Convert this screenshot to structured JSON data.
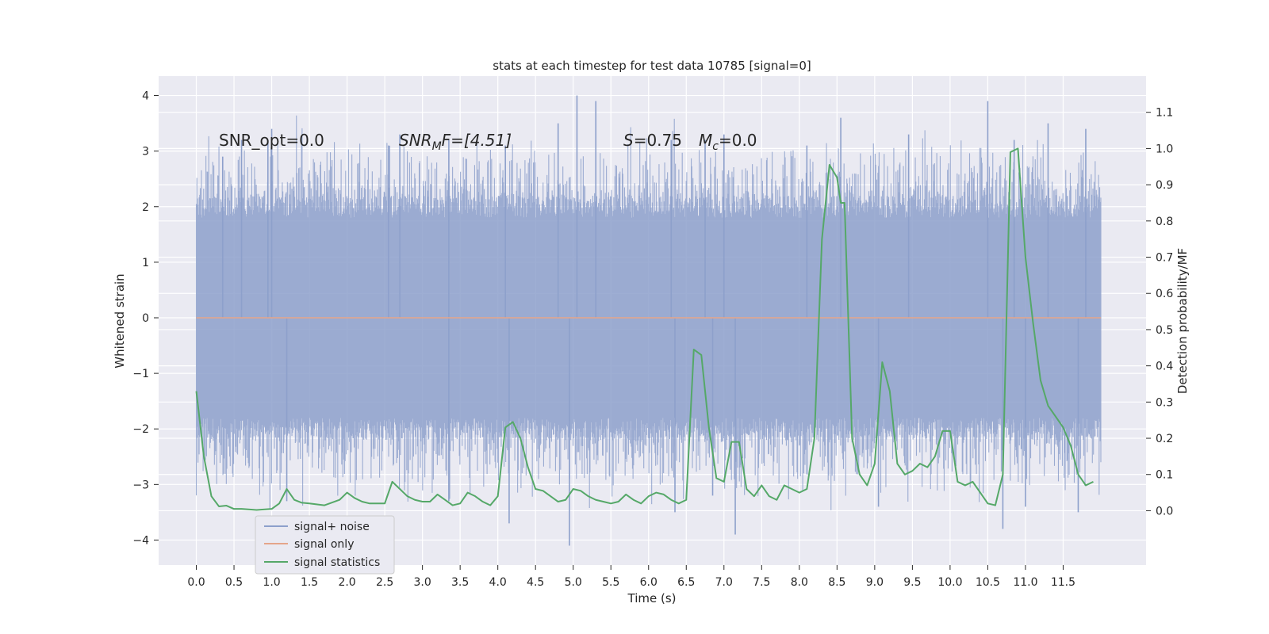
{
  "chart_data": {
    "type": "line",
    "title": "stats at each timestep for test data 10785 [signal=0]",
    "xlabel": "Time (s)",
    "ylabel": "Whitened strain",
    "y2label": "Detection probability/MF",
    "xlim": [
      -0.5,
      12.6
    ],
    "ylim": [
      -4.45,
      4.35
    ],
    "y2lim": [
      -0.15,
      1.2
    ],
    "xticks": [
      0.0,
      0.5,
      1.0,
      1.5,
      2.0,
      2.5,
      3.0,
      3.5,
      4.0,
      4.5,
      5.0,
      5.5,
      6.0,
      6.5,
      7.0,
      7.5,
      8.0,
      8.5,
      9.0,
      9.5,
      10.0,
      10.5,
      11.0,
      11.5
    ],
    "xtick_labels": [
      "0.0",
      "0.5",
      "1.0",
      "1.5",
      "2.0",
      "2.5",
      "3.0",
      "3.5",
      "4.0",
      "4.5",
      "5.0",
      "5.5",
      "6.0",
      "6.5",
      "7.0",
      "7.5",
      "8.0",
      "8.5",
      "9.0",
      "9.5",
      "10.0",
      "10.5",
      "11.0",
      "11.5"
    ],
    "yticks": [
      4,
      3,
      2,
      1,
      0,
      -1,
      -2,
      -3,
      -4
    ],
    "ytick_labels": [
      "4",
      "3",
      "2",
      "1",
      "0",
      "−1",
      "−2",
      "−3",
      "−4"
    ],
    "y2ticks": [
      1.1,
      1.0,
      0.9,
      0.8,
      0.7,
      0.6,
      0.5,
      0.4,
      0.3,
      0.2,
      0.1,
      0.0
    ],
    "y2tick_labels": [
      "1.1",
      "1.0",
      "0.9",
      "0.8",
      "0.7",
      "0.6",
      "0.5",
      "0.4",
      "0.3",
      "0.2",
      "0.1",
      "0.0"
    ],
    "grid": true,
    "legend_position": "lower-left",
    "annotations": {
      "snr_opt": "SNR_opt=0.0",
      "snr_mf_main": "SNR",
      "snr_mf_sub": "M",
      "snr_mf_rest": "F=[4.51]",
      "s_main": "S",
      "s_rest": "=0.75",
      "mc_main": "M",
      "mc_sub": "c",
      "mc_rest": "=0.0"
    },
    "series": [
      {
        "name": "signal+ noise",
        "color": "#8da0cb",
        "axis": "left",
        "style": "noise",
        "t_range": [
          0.0,
          12.0
        ],
        "baseline_band": [
          -1.8,
          1.8
        ],
        "peaks": [
          {
            "t": 0.35,
            "v": 2.9
          },
          {
            "t": 0.6,
            "v": 3.2
          },
          {
            "t": 0.95,
            "v": 3.2
          },
          {
            "t": 1.0,
            "v": 3.4
          },
          {
            "t": 2.55,
            "v": 3.1
          },
          {
            "t": 2.7,
            "v": 3.3
          },
          {
            "t": 3.35,
            "v": 3.2
          },
          {
            "t": 4.1,
            "v": 3.1
          },
          {
            "t": 4.8,
            "v": 3.5
          },
          {
            "t": 5.05,
            "v": 4.0
          },
          {
            "t": 5.3,
            "v": 3.9
          },
          {
            "t": 6.3,
            "v": 3.2
          },
          {
            "t": 6.75,
            "v": 3.2
          },
          {
            "t": 7.0,
            "v": 3.3
          },
          {
            "t": 8.1,
            "v": 3.1
          },
          {
            "t": 8.55,
            "v": 3.6
          },
          {
            "t": 9.45,
            "v": 3.3
          },
          {
            "t": 10.5,
            "v": 3.9
          },
          {
            "t": 10.85,
            "v": 3.2
          },
          {
            "t": 11.3,
            "v": 3.5
          },
          {
            "t": 11.8,
            "v": 3.4
          }
        ],
        "troughs": [
          {
            "t": 1.2,
            "v": -3.3
          },
          {
            "t": 3.35,
            "v": -3.3
          },
          {
            "t": 4.15,
            "v": -3.7
          },
          {
            "t": 4.95,
            "v": -4.1
          },
          {
            "t": 6.35,
            "v": -3.5
          },
          {
            "t": 6.85,
            "v": -3.2
          },
          {
            "t": 7.15,
            "v": -3.9
          },
          {
            "t": 9.05,
            "v": -3.4
          },
          {
            "t": 10.7,
            "v": -3.8
          },
          {
            "t": 11.0,
            "v": -3.4
          },
          {
            "t": 11.7,
            "v": -3.5
          }
        ]
      },
      {
        "name": "signal only",
        "color": "#e5a58a",
        "axis": "left",
        "x": [
          0.0,
          12.0
        ],
        "y": [
          0.0,
          0.0
        ]
      },
      {
        "name": "signal statistics",
        "color": "#55a868",
        "axis": "right",
        "x": [
          0.0,
          0.1,
          0.2,
          0.3,
          0.4,
          0.5,
          0.6,
          0.8,
          1.0,
          1.1,
          1.2,
          1.3,
          1.4,
          1.5,
          1.7,
          1.9,
          2.0,
          2.1,
          2.2,
          2.3,
          2.5,
          2.6,
          2.7,
          2.8,
          2.9,
          3.0,
          3.1,
          3.2,
          3.3,
          3.4,
          3.5,
          3.6,
          3.7,
          3.8,
          3.9,
          4.0,
          4.1,
          4.2,
          4.3,
          4.4,
          4.5,
          4.6,
          4.7,
          4.8,
          4.9,
          5.0,
          5.1,
          5.2,
          5.3,
          5.4,
          5.5,
          5.6,
          5.7,
          5.8,
          5.9,
          6.0,
          6.1,
          6.2,
          6.3,
          6.4,
          6.5,
          6.6,
          6.7,
          6.8,
          6.9,
          7.0,
          7.1,
          7.2,
          7.3,
          7.4,
          7.5,
          7.6,
          7.7,
          7.8,
          7.9,
          8.0,
          8.1,
          8.2,
          8.3,
          8.4,
          8.5,
          8.55,
          8.6,
          8.7,
          8.8,
          8.9,
          9.0,
          9.1,
          9.2,
          9.3,
          9.4,
          9.5,
          9.6,
          9.7,
          9.8,
          9.9,
          10.0,
          10.1,
          10.2,
          10.3,
          10.4,
          10.5,
          10.6,
          10.7,
          10.8,
          10.9,
          11.0,
          11.1,
          11.2,
          11.3,
          11.4,
          11.5,
          11.6,
          11.7,
          11.8,
          11.9
        ],
        "y": [
          0.33,
          0.15,
          0.04,
          0.012,
          0.014,
          0.005,
          0.005,
          0.002,
          0.005,
          0.02,
          0.06,
          0.03,
          0.022,
          0.02,
          0.015,
          0.03,
          0.05,
          0.035,
          0.025,
          0.02,
          0.02,
          0.08,
          0.06,
          0.04,
          0.03,
          0.025,
          0.025,
          0.045,
          0.03,
          0.015,
          0.02,
          0.05,
          0.04,
          0.025,
          0.015,
          0.04,
          0.23,
          0.245,
          0.2,
          0.12,
          0.06,
          0.055,
          0.04,
          0.025,
          0.03,
          0.06,
          0.055,
          0.04,
          0.03,
          0.025,
          0.02,
          0.025,
          0.045,
          0.03,
          0.02,
          0.04,
          0.05,
          0.045,
          0.03,
          0.02,
          0.03,
          0.445,
          0.43,
          0.23,
          0.09,
          0.08,
          0.19,
          0.19,
          0.06,
          0.04,
          0.07,
          0.04,
          0.03,
          0.07,
          0.06,
          0.05,
          0.06,
          0.2,
          0.75,
          0.955,
          0.92,
          0.85,
          0.85,
          0.2,
          0.1,
          0.07,
          0.13,
          0.41,
          0.33,
          0.13,
          0.1,
          0.11,
          0.13,
          0.12,
          0.15,
          0.22,
          0.22,
          0.08,
          0.07,
          0.08,
          0.05,
          0.02,
          0.015,
          0.1,
          0.99,
          1.0,
          0.7,
          0.52,
          0.36,
          0.29,
          0.26,
          0.23,
          0.18,
          0.1,
          0.07,
          0.08
        ]
      }
    ]
  }
}
